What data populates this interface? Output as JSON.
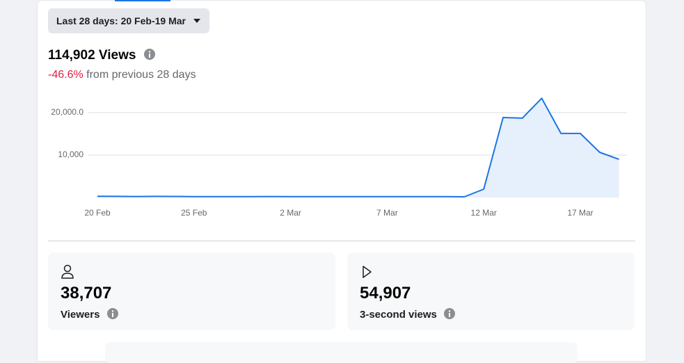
{
  "date_range": "Last 28 days: 20 Feb-19 Mar",
  "summary": {
    "total": "114,902 Views",
    "change": "-46.6%",
    "comparison": "from previous 28 days"
  },
  "chart_data": {
    "type": "area",
    "categories": [
      "20 Feb",
      null,
      null,
      null,
      null,
      "25 Feb",
      null,
      null,
      null,
      null,
      "2 Mar",
      null,
      null,
      null,
      null,
      "7 Mar",
      null,
      null,
      null,
      null,
      "12 Mar",
      null,
      null,
      null,
      null,
      "17 Mar",
      null,
      null
    ],
    "values": [
      300,
      260,
      230,
      260,
      250,
      220,
      200,
      210,
      220,
      230,
      210,
      200,
      220,
      210,
      200,
      220,
      210,
      200,
      190,
      160,
      1970,
      18850,
      18700,
      23400,
      15100,
      15100,
      10650,
      9000
    ],
    "color": "#1b74e4",
    "area_color": "#e6f0fc",
    "ylim": [
      0,
      24000
    ],
    "yticks": [
      {
        "value": 10000,
        "label": "10,000"
      },
      {
        "value": 20000,
        "label": "20,000.0"
      }
    ],
    "grid": true
  },
  "stats": [
    {
      "value": "38,707",
      "label": "Viewers"
    },
    {
      "value": "54,907",
      "label": "3-second views"
    }
  ]
}
